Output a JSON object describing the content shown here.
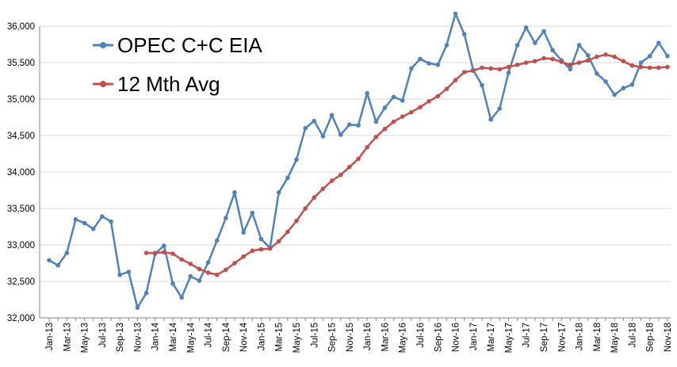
{
  "chart_data": {
    "type": "line",
    "title": "",
    "xlabel": "",
    "ylabel": "",
    "ylim": [
      32000,
      36000
    ],
    "yticks": [
      32000,
      32500,
      33000,
      33500,
      34000,
      34500,
      35000,
      35500,
      36000
    ],
    "ytick_labels": [
      "32,000",
      "32,500",
      "33,000",
      "33,500",
      "34,000",
      "34,500",
      "35,000",
      "35,500",
      "36,000"
    ],
    "x_tick_labels": [
      "Jan-13",
      "Mar-13",
      "May-13",
      "Jul-13",
      "Sep-13",
      "Nov-13",
      "Jan-14",
      "Mar-14",
      "May-14",
      "Jul-14",
      "Sep-14",
      "Nov-14",
      "Jan-15",
      "Mar-15",
      "May-15",
      "Jul-15",
      "Sep-15",
      "Nov-15",
      "Jan-16",
      "Mar-16",
      "May-16",
      "Jul-16",
      "Sep-16",
      "Nov-16",
      "Jan-17",
      "Mar-17",
      "May-17",
      "Jul-17",
      "Sep-17",
      "Nov-17",
      "Jan-18",
      "Mar-18",
      "May-18",
      "Jul-18",
      "Sep-18",
      "Nov-18"
    ],
    "grid": "horizontal",
    "legend_position": "top-left",
    "series": [
      {
        "name": "OPEC C+C EIA",
        "color": "#4f81bd",
        "start_index": 0,
        "values": [
          32790,
          32720,
          32890,
          33350,
          33300,
          33220,
          33390,
          33320,
          32590,
          32630,
          32140,
          32340,
          32880,
          32990,
          32470,
          32280,
          32570,
          32510,
          32760,
          33060,
          33370,
          33720,
          33170,
          33440,
          33080,
          32960,
          33720,
          33920,
          34170,
          34600,
          34700,
          34490,
          34780,
          34510,
          34650,
          34640,
          35080,
          34690,
          34880,
          35030,
          34980,
          35420,
          35550,
          35490,
          35470,
          35740,
          36170,
          35890,
          35400,
          35190,
          34720,
          34870,
          35360,
          35740,
          35980,
          35770,
          35930,
          35670,
          35530,
          35410,
          35740,
          35600,
          35350,
          35240,
          35060,
          35150,
          35200,
          35500,
          35590,
          35770,
          35590
        ]
      },
      {
        "name": "12 Mth Avg",
        "color": "#c0504d",
        "start_index": 11,
        "values": [
          32890,
          32890,
          32900,
          32880,
          32800,
          32740,
          32670,
          32620,
          32590,
          32660,
          32750,
          32840,
          32920,
          32940,
          32950,
          33050,
          33180,
          33330,
          33500,
          33650,
          33770,
          33880,
          33960,
          34070,
          34180,
          34340,
          34480,
          34590,
          34690,
          34760,
          34820,
          34890,
          34970,
          35040,
          35140,
          35260,
          35370,
          35390,
          35430,
          35420,
          35410,
          35440,
          35470,
          35500,
          35520,
          35560,
          35550,
          35510,
          35470,
          35500,
          35530,
          35580,
          35610,
          35580,
          35520,
          35460,
          35440,
          35430,
          35430,
          35440
        ]
      }
    ]
  }
}
